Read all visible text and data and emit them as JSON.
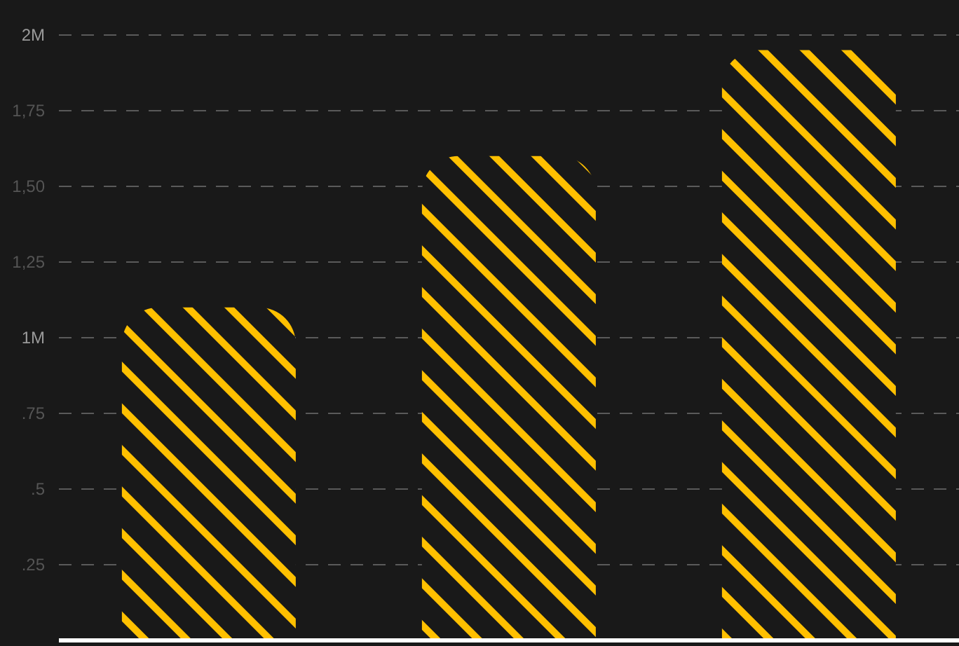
{
  "chart_data": {
    "type": "bar",
    "categories": [
      null,
      null,
      null
    ],
    "values": [
      1.1,
      1.6,
      1.95
    ],
    "color": "#ffc000",
    "ylim": [
      0,
      2
    ],
    "yticks": [
      {
        "value": 0.25,
        "label": ".25"
      },
      {
        "value": 0.5,
        "label": ".5"
      },
      {
        "value": 0.75,
        "label": ".75"
      },
      {
        "value": 1,
        "label": "1M"
      },
      {
        "value": 1.25,
        "label": "1,25"
      },
      {
        "value": 1.5,
        "label": "1,50"
      },
      {
        "value": 1.75,
        "label": "1,75"
      },
      {
        "value": 2,
        "label": "2M"
      }
    ],
    "grid": "y"
  }
}
